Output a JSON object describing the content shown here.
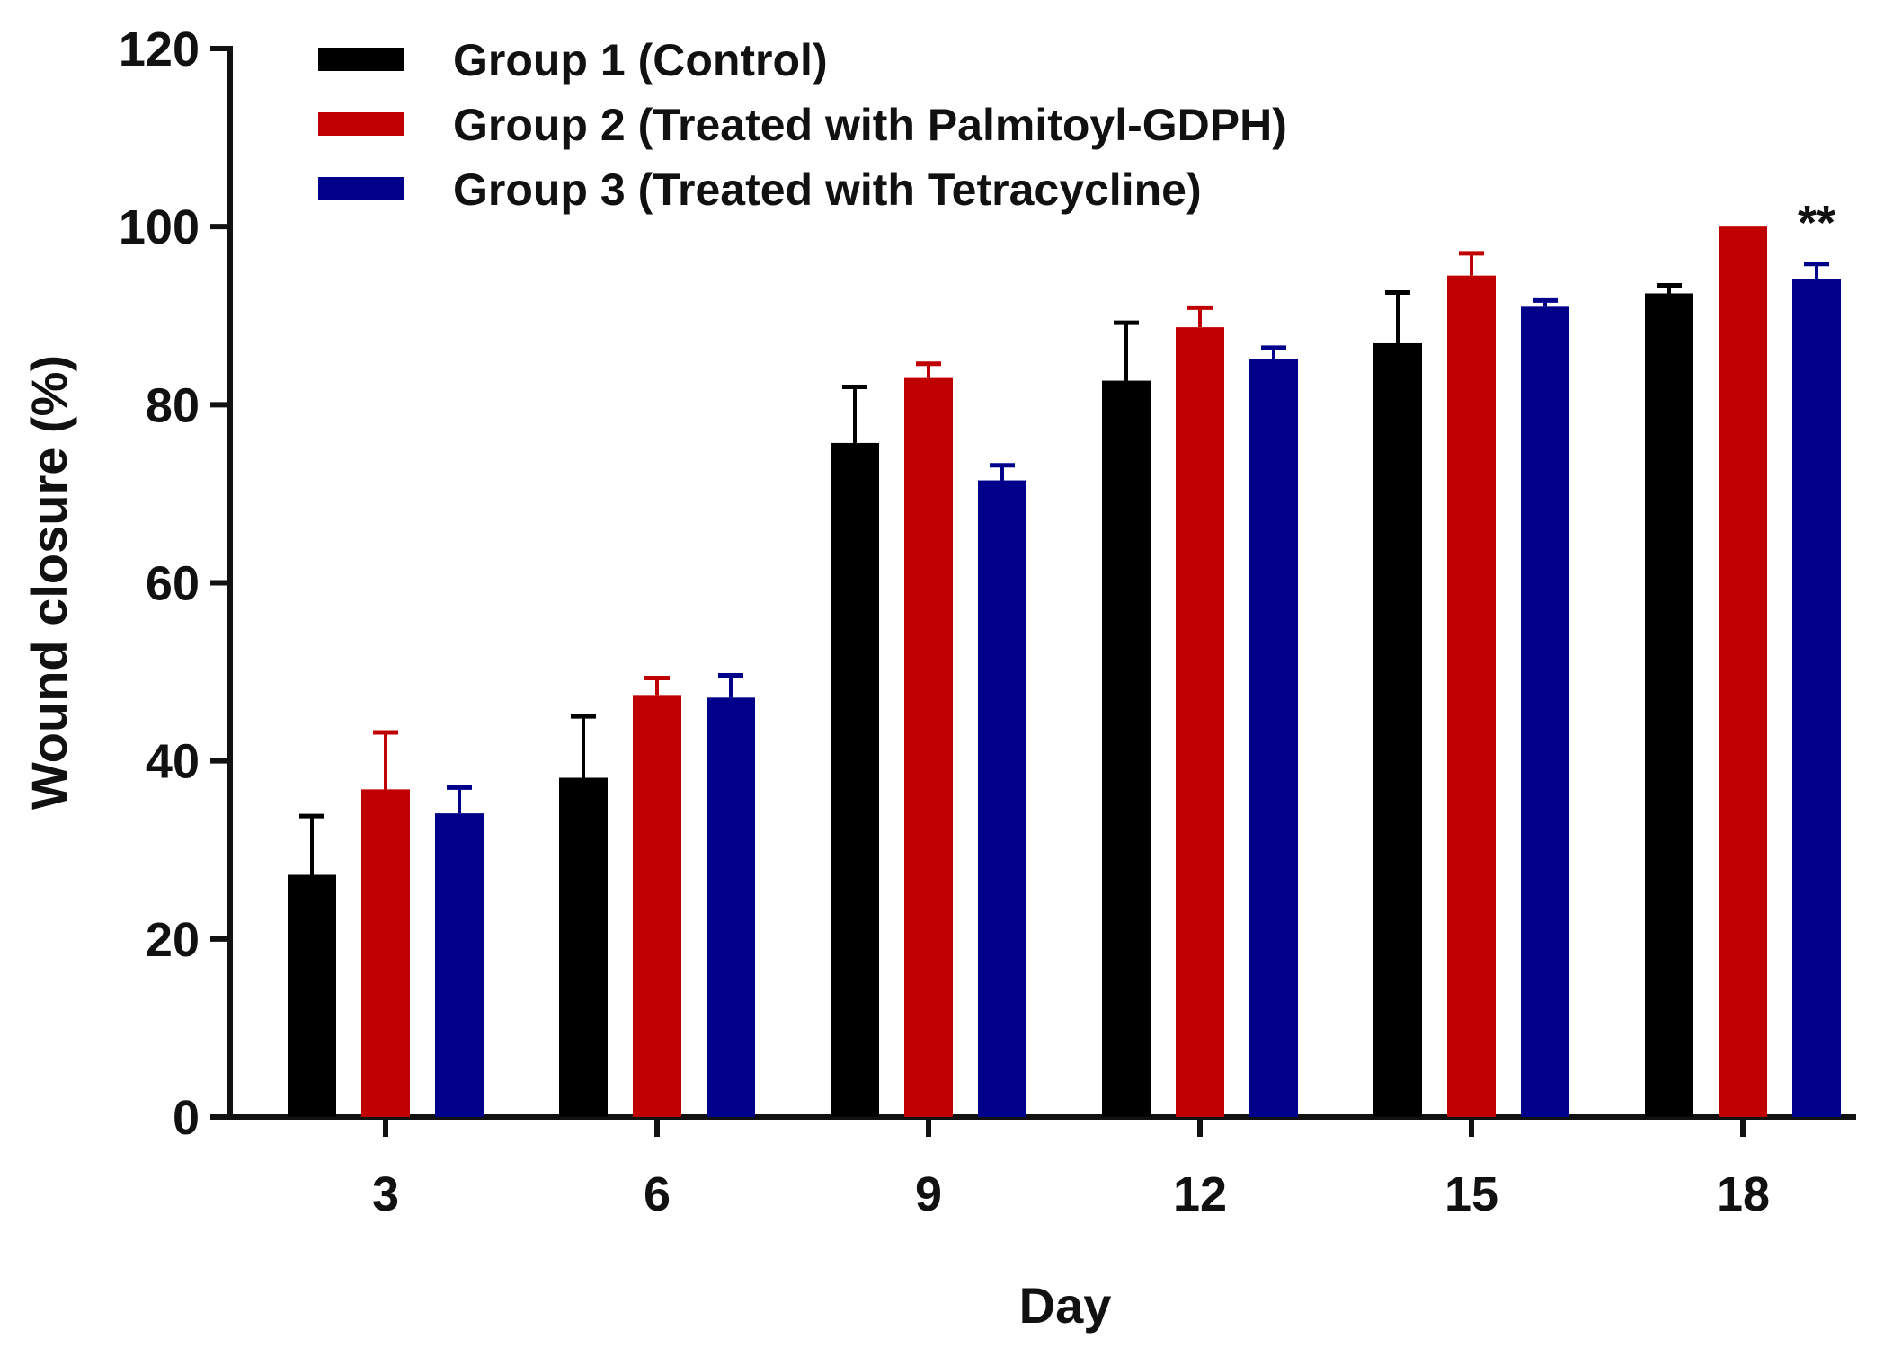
{
  "chart_data": {
    "type": "bar",
    "title": "",
    "xlabel": "Day",
    "ylabel": "Wound closure (%)",
    "ylim": [
      0,
      120
    ],
    "yticks": [
      0,
      20,
      40,
      60,
      80,
      100,
      120
    ],
    "categories": [
      "3",
      "6",
      "9",
      "12",
      "15",
      "18"
    ],
    "legend_position": "top-left",
    "series": [
      {
        "name": "Group 1 (Control)",
        "color": "#000000",
        "values": [
          27.2,
          38.1,
          75.7,
          82.7,
          86.9,
          92.5
        ],
        "errors": [
          6.6,
          6.9,
          6.3,
          6.5,
          5.7,
          0.9
        ]
      },
      {
        "name": "Group 2 (Treated with Palmitoyl-GDPH)",
        "color": "#c00000",
        "values": [
          36.8,
          47.4,
          83.0,
          88.7,
          94.5,
          100
        ],
        "errors": [
          6.4,
          1.9,
          1.6,
          2.2,
          2.5,
          0
        ]
      },
      {
        "name": "Group 3 (Treated with Tetracycline)",
        "color": "#00008b",
        "values": [
          34.1,
          47.1,
          71.5,
          85.1,
          91.0,
          94.1
        ],
        "errors": [
          2.9,
          2.5,
          1.7,
          1.3,
          0.7,
          1.7
        ]
      }
    ],
    "annotations": [
      {
        "text": "**",
        "category": "18",
        "series": 2
      }
    ]
  }
}
